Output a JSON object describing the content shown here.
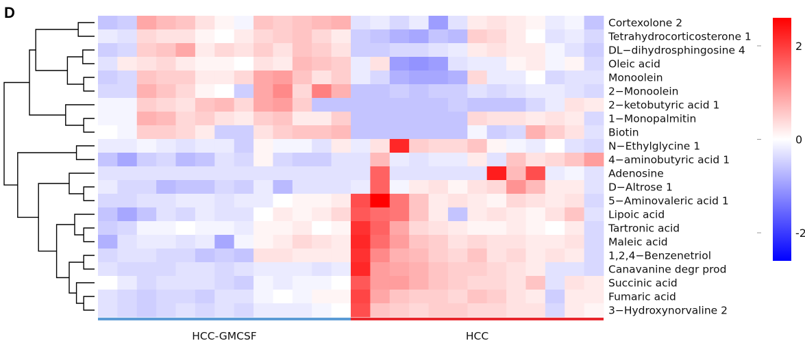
{
  "chart_data": {
    "type": "heatmap",
    "panel_label": "D",
    "rows": [
      "Cortexolone 2",
      "Tetrahydrocorticosterone 1",
      "DL−dihydrosphingosine 4",
      "Oleic acid",
      "Monoolein",
      "2−Monoolein",
      "2−ketobutyric acid 1",
      "1−Monopalmitin",
      "Biotin",
      "N−Ethylglycine 1",
      "4−aminobutyric acid 1",
      "Adenosine",
      "D−Altrose 1",
      "5−Aminovaleric acid 1",
      "Lipoic acid",
      "Tartronic acid",
      "Maleic acid",
      "1,2,4−Benzenetriol",
      "Canavanine degr prod",
      "Succinic acid",
      "Fumaric acid",
      "3−Hydroxynorvaline 2"
    ],
    "groups": [
      {
        "name": "HCC-GMCSF",
        "n_columns": 13,
        "color": "#5b9bd5"
      },
      {
        "name": "HCC",
        "n_columns": 13,
        "color": "#e8262c"
      }
    ],
    "colorbar": {
      "ticks": [
        2,
        0,
        -2
      ],
      "tick_labels": [
        "2",
        "0",
        "-2"
      ],
      "range": [
        -2.6,
        2.6
      ],
      "low_color": "#0000ff",
      "mid_color": "#ffffff",
      "high_color": "#ff0000"
    },
    "values": [
      [
        -0.6,
        -0.5,
        0.9,
        0.7,
        0.6,
        0.3,
        0.1,
        -0.1,
        0.6,
        0.5,
        0.6,
        0.7,
        0.8,
        -0.3,
        -0.2,
        -0.4,
        -0.2,
        -1.0,
        -0.3,
        0.2,
        0.3,
        0.2,
        0.1,
        -0.2,
        -0.1,
        -0.6
      ],
      [
        -0.2,
        -0.3,
        0.4,
        0.3,
        0.3,
        0.1,
        0.0,
        0.2,
        0.4,
        0.5,
        0.6,
        0.4,
        0.2,
        -0.5,
        -0.6,
        -0.8,
        -0.9,
        -0.6,
        -0.7,
        0.5,
        0.4,
        0.2,
        0.0,
        -0.3,
        -0.2,
        -0.4
      ],
      [
        -0.5,
        -0.4,
        0.5,
        0.6,
        0.9,
        0.2,
        0.4,
        0.3,
        0.5,
        0.3,
        0.6,
        0.5,
        0.3,
        -0.5,
        -0.5,
        -0.4,
        -0.4,
        -0.3,
        -0.2,
        0.2,
        0.3,
        0.2,
        0.2,
        -0.1,
        -0.3,
        -0.5
      ],
      [
        -0.3,
        0.2,
        0.3,
        0.4,
        0.2,
        0.1,
        0.1,
        0.0,
        0.3,
        0.2,
        0.7,
        0.6,
        0.5,
        -0.2,
        0.3,
        -1.0,
        -1.1,
        -1.0,
        -0.3,
        -0.2,
        -0.2,
        0.1,
        0.2,
        -0.1,
        0.1,
        -0.4
      ],
      [
        -0.5,
        -0.4,
        0.6,
        0.5,
        0.5,
        0.2,
        0.2,
        0.4,
        0.9,
        1.0,
        0.6,
        0.3,
        0.5,
        -0.2,
        -0.4,
        -0.8,
        -0.9,
        -0.9,
        -0.8,
        0.4,
        -0.2,
        -0.2,
        0.0,
        -0.4,
        -0.3,
        -0.3
      ],
      [
        -0.4,
        -0.4,
        0.8,
        0.6,
        0.4,
        0.1,
        0.0,
        -0.5,
        0.9,
        1.2,
        0.4,
        1.3,
        0.8,
        -0.6,
        -0.6,
        -0.5,
        -0.6,
        -0.5,
        -0.5,
        -0.3,
        -0.4,
        -0.3,
        -0.2,
        -0.2,
        -0.3,
        -0.4
      ],
      [
        -0.1,
        -0.1,
        0.5,
        0.4,
        0.3,
        0.6,
        0.7,
        0.4,
        0.9,
        1.0,
        0.5,
        -0.6,
        -0.6,
        -0.6,
        -0.6,
        -0.6,
        -0.6,
        -0.6,
        -0.5,
        -0.6,
        -0.6,
        -0.6,
        -0.4,
        -0.2,
        0.3,
        0.2
      ],
      [
        -0.1,
        -0.1,
        0.8,
        0.7,
        0.4,
        0.5,
        0.3,
        0.2,
        0.5,
        0.6,
        0.2,
        0.2,
        0.5,
        -0.6,
        -0.6,
        -0.6,
        -0.6,
        -0.6,
        -0.6,
        0.4,
        0.3,
        0.3,
        0.2,
        0.3,
        0.2,
        -0.4
      ],
      [
        0.0,
        -0.1,
        0.5,
        0.5,
        0.4,
        0.2,
        -0.5,
        -0.5,
        0.3,
        0.5,
        0.6,
        0.6,
        0.7,
        -0.6,
        -0.6,
        -0.6,
        -0.6,
        -0.6,
        -0.6,
        -0.1,
        -0.5,
        -0.4,
        0.8,
        0.5,
        0.3,
        -0.3
      ],
      [
        -0.2,
        -0.2,
        -0.1,
        -0.2,
        -0.3,
        -0.2,
        -0.2,
        -0.5,
        0.1,
        -0.1,
        -0.1,
        -0.3,
        0.2,
        -0.2,
        0.3,
        2.2,
        0.5,
        0.4,
        0.4,
        0.6,
        0.1,
        -0.1,
        -0.2,
        0.0,
        -0.3,
        -0.4
      ],
      [
        -0.6,
        -0.9,
        -0.5,
        -0.4,
        -0.7,
        -0.6,
        -0.3,
        -0.4,
        0.1,
        -0.4,
        -0.5,
        -0.5,
        -0.3,
        -0.3,
        0.7,
        -0.2,
        -0.3,
        -0.2,
        -0.2,
        0.2,
        -0.3,
        0.6,
        0.3,
        0.4,
        0.6,
        1.0
      ],
      [
        -0.3,
        -0.3,
        -0.3,
        -0.3,
        -0.3,
        -0.3,
        -0.3,
        -0.3,
        -0.3,
        -0.3,
        -0.3,
        -0.3,
        -0.3,
        -0.3,
        1.6,
        -0.3,
        -0.3,
        -0.3,
        -0.3,
        -0.3,
        2.3,
        0.7,
        1.8,
        -0.2,
        -0.1,
        -0.3
      ],
      [
        -0.2,
        -0.4,
        -0.4,
        -0.7,
        -0.6,
        -0.6,
        -0.4,
        -0.5,
        -0.2,
        -0.7,
        -0.3,
        -0.3,
        -0.3,
        -0.2,
        1.6,
        -0.1,
        0.2,
        0.3,
        0.1,
        0.3,
        0.4,
        1.1,
        0.7,
        0.2,
        0.2,
        -0.3
      ],
      [
        -0.4,
        -0.4,
        -0.3,
        -0.3,
        -0.2,
        -0.2,
        -0.3,
        -0.2,
        -0.2,
        0.0,
        0.1,
        0.1,
        0.2,
        1.8,
        2.6,
        1.4,
        0.6,
        0.2,
        0.3,
        0.2,
        0.1,
        0.4,
        0.3,
        0.2,
        0.3,
        -0.4
      ],
      [
        -0.6,
        -0.9,
        -0.6,
        -0.3,
        -0.4,
        -0.2,
        -0.3,
        -0.3,
        0.0,
        0.2,
        0.1,
        0.2,
        0.4,
        1.7,
        1.5,
        1.4,
        0.6,
        0.2,
        -0.6,
        0.2,
        0.3,
        0.2,
        0.1,
        0.3,
        0.6,
        -0.3
      ],
      [
        -0.5,
        -0.4,
        -0.1,
        -0.1,
        0.0,
        -0.1,
        -0.1,
        -0.2,
        0.1,
        0.1,
        0.2,
        0.0,
        0.1,
        2.1,
        1.6,
        0.9,
        0.4,
        0.3,
        0.2,
        0.1,
        0.1,
        0.2,
        0.1,
        0.0,
        0.2,
        -0.4
      ],
      [
        -0.8,
        -0.3,
        -0.2,
        -0.2,
        -0.3,
        -0.2,
        -0.9,
        -0.1,
        0.1,
        0.2,
        0.4,
        0.3,
        0.2,
        2.2,
        1.5,
        1.0,
        0.6,
        0.5,
        0.3,
        0.4,
        0.3,
        0.3,
        0.2,
        0.2,
        0.3,
        -0.4
      ],
      [
        -0.4,
        -0.3,
        -0.3,
        -0.4,
        -0.4,
        -0.6,
        -0.5,
        -0.6,
        0.3,
        0.3,
        0.2,
        0.2,
        0.2,
        2.1,
        1.2,
        0.8,
        0.7,
        0.5,
        0.4,
        0.6,
        0.3,
        0.4,
        0.2,
        0.3,
        0.2,
        -0.4
      ],
      [
        -0.3,
        -0.4,
        -0.4,
        -0.4,
        -0.3,
        -0.3,
        -0.4,
        -0.3,
        -0.2,
        -0.2,
        -0.2,
        -0.3,
        -0.2,
        2.2,
        1.0,
        0.9,
        0.8,
        0.6,
        0.5,
        0.5,
        0.4,
        0.3,
        0.2,
        -0.3,
        -0.3,
        -0.4
      ],
      [
        0.0,
        -0.2,
        -0.4,
        -0.3,
        -0.3,
        -0.3,
        -0.4,
        -0.5,
        -0.1,
        -0.2,
        -0.1,
        -0.1,
        0.0,
        1.7,
        1.0,
        1.0,
        0.8,
        0.6,
        0.5,
        0.4,
        0.4,
        0.3,
        0.6,
        -0.3,
        0.3,
        0.2
      ],
      [
        -0.3,
        -0.4,
        -0.5,
        -0.4,
        -0.4,
        -0.5,
        -0.3,
        -0.3,
        -0.1,
        0.0,
        -0.1,
        0.1,
        0.1,
        1.9,
        0.9,
        0.6,
        0.5,
        0.5,
        0.4,
        0.6,
        0.5,
        0.3,
        0.2,
        -0.5,
        0.2,
        0.2
      ],
      [
        -0.3,
        -0.4,
        -0.5,
        -0.4,
        -0.3,
        -0.4,
        -0.3,
        -0.4,
        -0.2,
        -0.2,
        -0.2,
        -0.1,
        0.0,
        1.8,
        0.6,
        0.5,
        0.4,
        0.5,
        0.5,
        0.4,
        0.4,
        0.3,
        0.3,
        -0.4,
        0.2,
        0.1
      ]
    ],
    "row_dendrogram": {
      "merges": [
        [
          0,
          1,
          0.18
        ],
        [
          2,
          3,
          0.13
        ],
        [
          4,
          5,
          0.12
        ],
        [
          7,
          8,
          0.12
        ],
        [
          "m2",
          "m1",
          0.3
        ],
        [
          6,
          "m3",
          0.32
        ],
        [
          "m0",
          "m4",
          0.65
        ],
        [
          "m6",
          "m5",
          0.72
        ],
        [
          9,
          10,
          0.2
        ],
        [
          12,
          13,
          0.12
        ],
        [
          11,
          "m9",
          0.28
        ],
        [
          15,
          16,
          0.12
        ],
        [
          14,
          "m11",
          0.22
        ],
        [
          17,
          18,
          0.12
        ],
        [
          20,
          21,
          0.12
        ],
        [
          19,
          "m14",
          0.2
        ],
        [
          "m13",
          "m15",
          0.28
        ],
        [
          "m12",
          "m16",
          0.42
        ],
        [
          "m10",
          "m17",
          0.62
        ],
        [
          "m8",
          "m18",
          0.85
        ],
        [
          "m7",
          "m19",
          1.0
        ]
      ]
    }
  }
}
